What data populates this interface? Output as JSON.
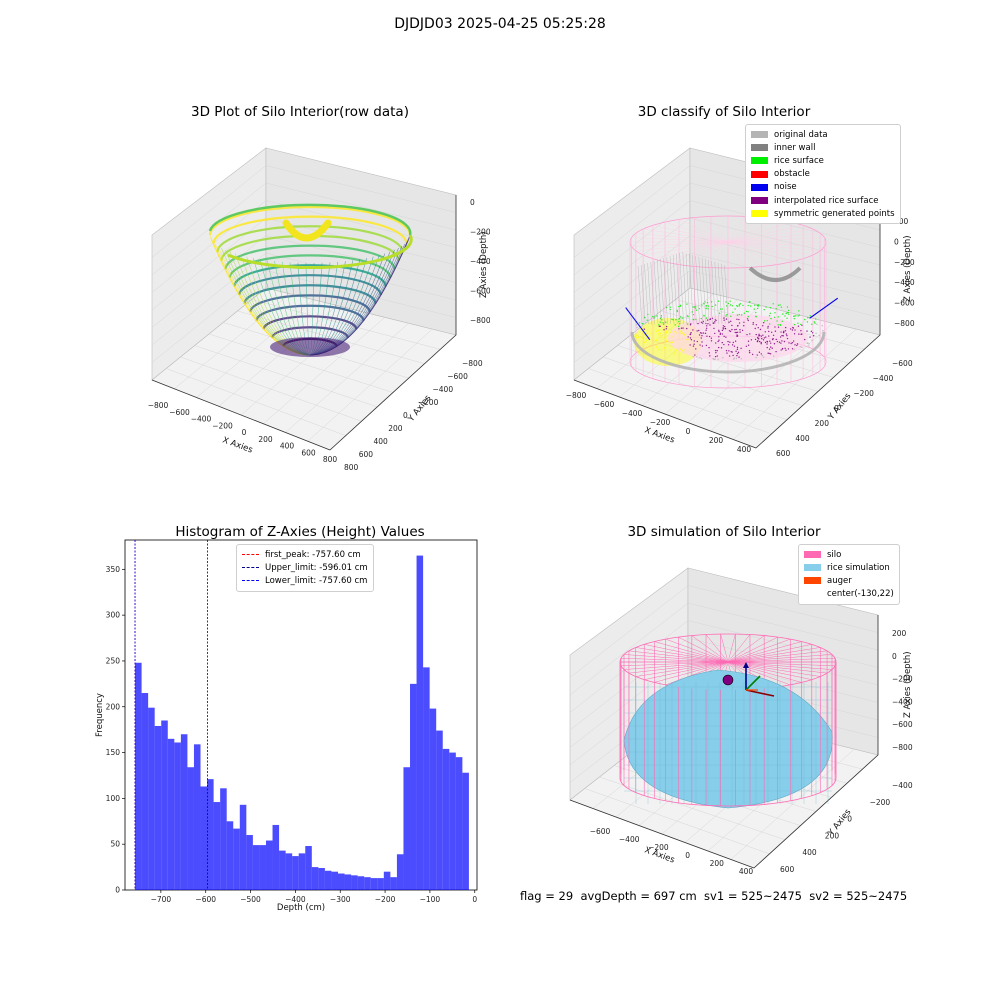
{
  "suptitle": "DJDJD03 2025-04-25 05:25:28",
  "panel1": {
    "title": "3D Plot of Silo Interior(row data)",
    "xlabel": "X Axies",
    "ylabel": "Y Axies",
    "zlabel": "Z Axies (Depth)",
    "xticks": [
      "−800",
      "−600",
      "−400",
      "−200",
      "0",
      "200",
      "400",
      "600",
      "800"
    ],
    "yticks": [
      "800",
      "600",
      "400",
      "200",
      "0",
      "−200",
      "−400",
      "−600",
      "−800"
    ],
    "zticks": [
      "0",
      "−200",
      "−400",
      "−600",
      "−800"
    ],
    "colormap": "viridis"
  },
  "panel2": {
    "title": "3D classify of Silo Interior",
    "xlabel": "X Axies",
    "ylabel": "Y Axies",
    "zlabel": "Z Axies (Depth)",
    "xticks": [
      "−800",
      "−600",
      "−400",
      "−200",
      "0",
      "200",
      "400"
    ],
    "yticks": [
      "600",
      "400",
      "200",
      "0",
      "−200",
      "−400",
      "−600"
    ],
    "zticks": [
      "200",
      "0",
      "−200",
      "−400",
      "−600",
      "−800"
    ],
    "legend": [
      {
        "label": "original data",
        "color": "#b4b4b4"
      },
      {
        "label": "inner wall",
        "color": "#808080"
      },
      {
        "label": "rice surface",
        "color": "#00ee00"
      },
      {
        "label": "obstacle",
        "color": "#ff0000"
      },
      {
        "label": "noise",
        "color": "#0000ee"
      },
      {
        "label": "interpolated rice surface",
        "color": "#800080"
      },
      {
        "label": "symmetric generated points",
        "color": "#ffff00"
      }
    ]
  },
  "panel3": {
    "legend": [
      {
        "label": "first_peak: -757.60 cm",
        "color": "#ff0000"
      },
      {
        "label": "Upper_limit: -596.01 cm",
        "color": "#00008b"
      },
      {
        "label": "Lower_limit: -757.60 cm",
        "color": "#0000ff"
      }
    ]
  },
  "panel4": {
    "title": "3D simulation of Silo Interior",
    "xlabel": "X Axies",
    "ylabel": "Y Axies",
    "zlabel": "Z Axies (Depth)",
    "xticks": [
      "−600",
      "−400",
      "−200",
      "0",
      "200",
      "400"
    ],
    "yticks": [
      "600",
      "400",
      "200",
      "0",
      "−200",
      "−400"
    ],
    "zticks": [
      "200",
      "0",
      "−200",
      "−400",
      "−600",
      "−800"
    ],
    "legend": [
      {
        "label": "silo",
        "color": "#ff69b4"
      },
      {
        "label": "rice simulation",
        "color": "#87ceeb"
      },
      {
        "label": "auger",
        "color": "#ff4500"
      },
      {
        "label": "center(-130,22)",
        "color": ""
      }
    ]
  },
  "footer": "flag = 29  avgDepth = 697 cm  sv1 = 525~2475  sv2 = 525~2475",
  "chart_data": {
    "type": "bar",
    "title": "Histogram of Z-Axies (Height) Values",
    "xlabel": "Depth (cm)",
    "ylabel": "Frequency",
    "xlim": [
      -780,
      5
    ],
    "ylim": [
      0,
      382
    ],
    "xticks": [
      -700,
      -600,
      -500,
      -400,
      -300,
      -200,
      -100,
      0
    ],
    "yticks": [
      0,
      50,
      100,
      150,
      200,
      250,
      300,
      350
    ],
    "bin_start": -757.6,
    "bin_width": 14.6,
    "values": [
      248,
      215,
      199,
      179,
      185,
      165,
      161,
      170,
      134,
      159,
      113,
      121,
      96,
      111,
      75,
      67,
      93,
      60,
      49,
      49,
      54,
      71,
      43,
      40,
      37,
      40,
      48,
      25,
      24,
      21,
      20,
      18,
      17,
      16,
      15,
      14,
      13,
      13,
      20,
      14,
      39,
      134,
      225,
      365,
      243,
      198,
      174,
      154,
      150,
      145,
      128
    ],
    "bar_color": "#0000ff",
    "series": [
      {
        "name": "",
        "values": []
      }
    ],
    "lines": [
      {
        "name": "first_peak",
        "x": -757.6,
        "color": "#ff0000"
      },
      {
        "name": "Upper_limit",
        "x": -596.01,
        "color": "#00008b"
      },
      {
        "name": "Lower_limit",
        "x": -757.6,
        "color": "#0000ff"
      }
    ]
  }
}
